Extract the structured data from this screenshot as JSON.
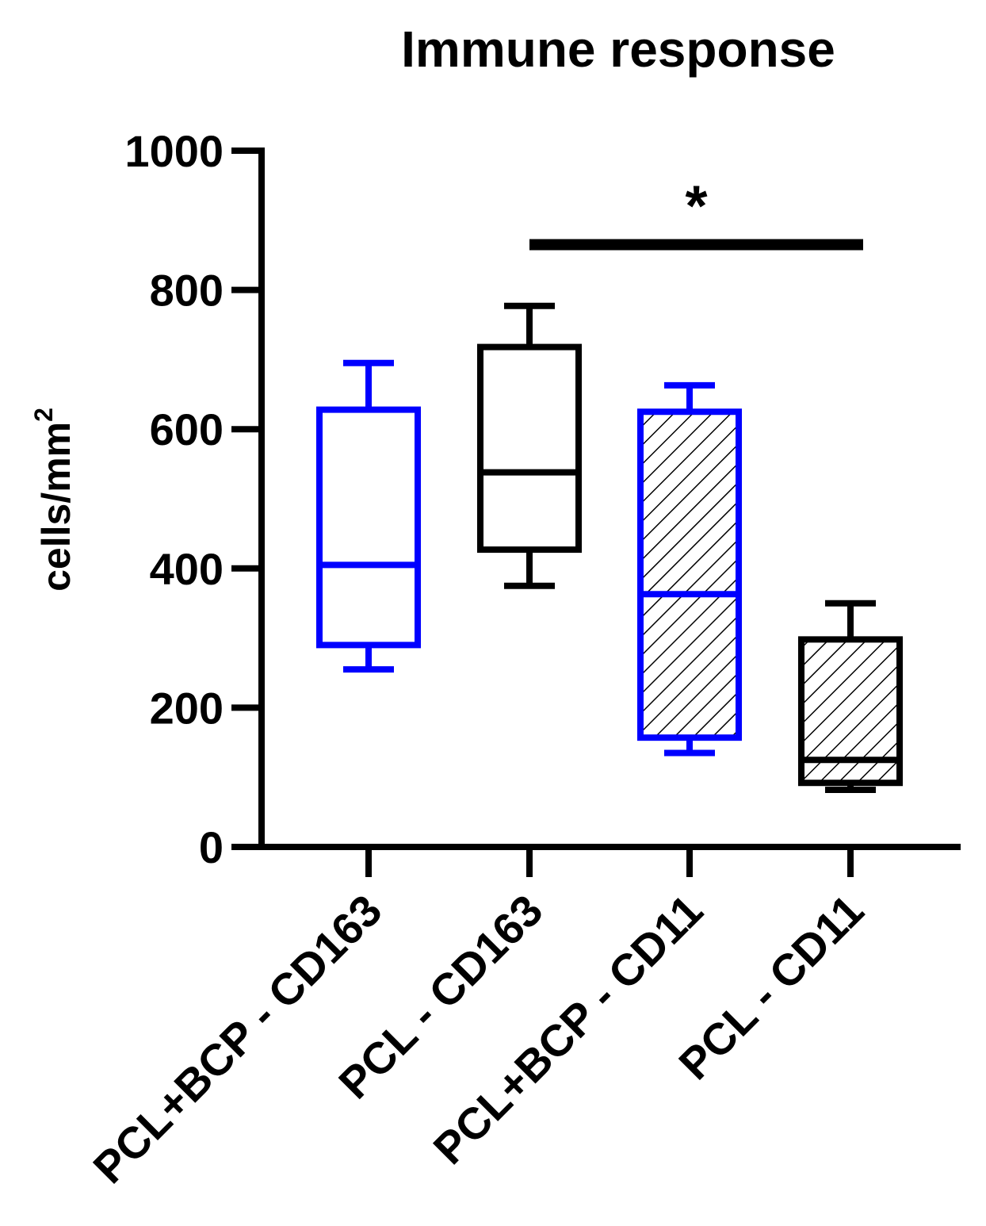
{
  "chart_data": {
    "type": "box",
    "title": "Immune response",
    "ylabel_base": "cells/mm",
    "ylabel_sup": "2",
    "xlabel": "",
    "ylim": [
      0,
      1000
    ],
    "yticks": [
      "0",
      "200",
      "400",
      "600",
      "800",
      "1000"
    ],
    "ytick_values": [
      0,
      200,
      400,
      600,
      800,
      1000
    ],
    "categories": [
      "PCL+BCP - CD163",
      "PCL - CD163",
      "PCL+BCP - CD11",
      "PCL - CD11"
    ],
    "boxes": [
      {
        "name": "PCL+BCP - CD163",
        "min": 255,
        "q1": 290,
        "median": 405,
        "q3": 628,
        "max": 695,
        "color": "#0000ff",
        "hatched": false
      },
      {
        "name": "PCL - CD163",
        "min": 375,
        "q1": 427,
        "median": 538,
        "q3": 718,
        "max": 777,
        "color": "#000000",
        "hatched": false
      },
      {
        "name": "PCL+BCP - CD11",
        "min": 135,
        "q1": 157,
        "median": 363,
        "q3": 625,
        "max": 663,
        "color": "#0000ff",
        "hatched": true
      },
      {
        "name": "PCL - CD11",
        "min": 82,
        "q1": 92,
        "median": 125,
        "q3": 298,
        "max": 350,
        "color": "#000000",
        "hatched": true
      }
    ],
    "significance": {
      "from": 1,
      "to": 3,
      "y": 865,
      "label": "*"
    }
  }
}
